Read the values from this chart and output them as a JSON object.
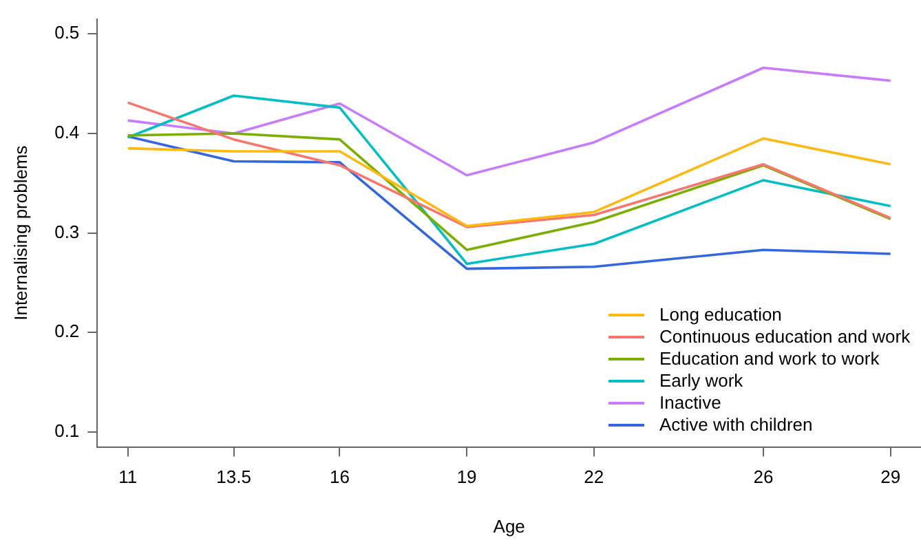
{
  "chart_data": {
    "type": "line",
    "xlabel": "Age",
    "ylabel": "Internalising problems",
    "x": [
      11,
      13.5,
      16,
      19,
      22,
      26,
      29
    ],
    "xlim": [
      10.28,
      29.72
    ],
    "xticks": [
      11,
      13.5,
      16,
      19,
      22,
      26,
      29
    ],
    "ylim": [
      0.085,
      0.515
    ],
    "yticks": [
      0.1,
      0.2,
      0.3,
      0.4,
      0.5
    ],
    "grid": false,
    "legend": "bottom right",
    "marker": "none",
    "line_style": "solid",
    "series": [
      {
        "name": "Long education",
        "color": "#ffb90f",
        "values": [
          0.385,
          0.382,
          0.382,
          0.307,
          0.321,
          0.395,
          0.369
        ]
      },
      {
        "name": "Continuous education and work",
        "color": "#f8766d",
        "values": [
          0.431,
          0.394,
          0.368,
          0.306,
          0.318,
          0.369,
          0.315
        ]
      },
      {
        "name": "Education and work to work",
        "color": "#7cae00",
        "values": [
          0.398,
          0.4,
          0.394,
          0.283,
          0.311,
          0.368,
          0.314
        ]
      },
      {
        "name": "Early work",
        "color": "#00bfc4",
        "values": [
          0.396,
          0.438,
          0.426,
          0.269,
          0.289,
          0.353,
          0.327
        ]
      },
      {
        "name": "Inactive",
        "color": "#c77cff",
        "values": [
          0.413,
          0.4,
          0.43,
          0.358,
          0.391,
          0.466,
          0.453
        ]
      },
      {
        "name": "Active with children",
        "color": "#3366e0",
        "values": [
          0.397,
          0.372,
          0.371,
          0.264,
          0.266,
          0.283,
          0.279
        ]
      }
    ]
  }
}
